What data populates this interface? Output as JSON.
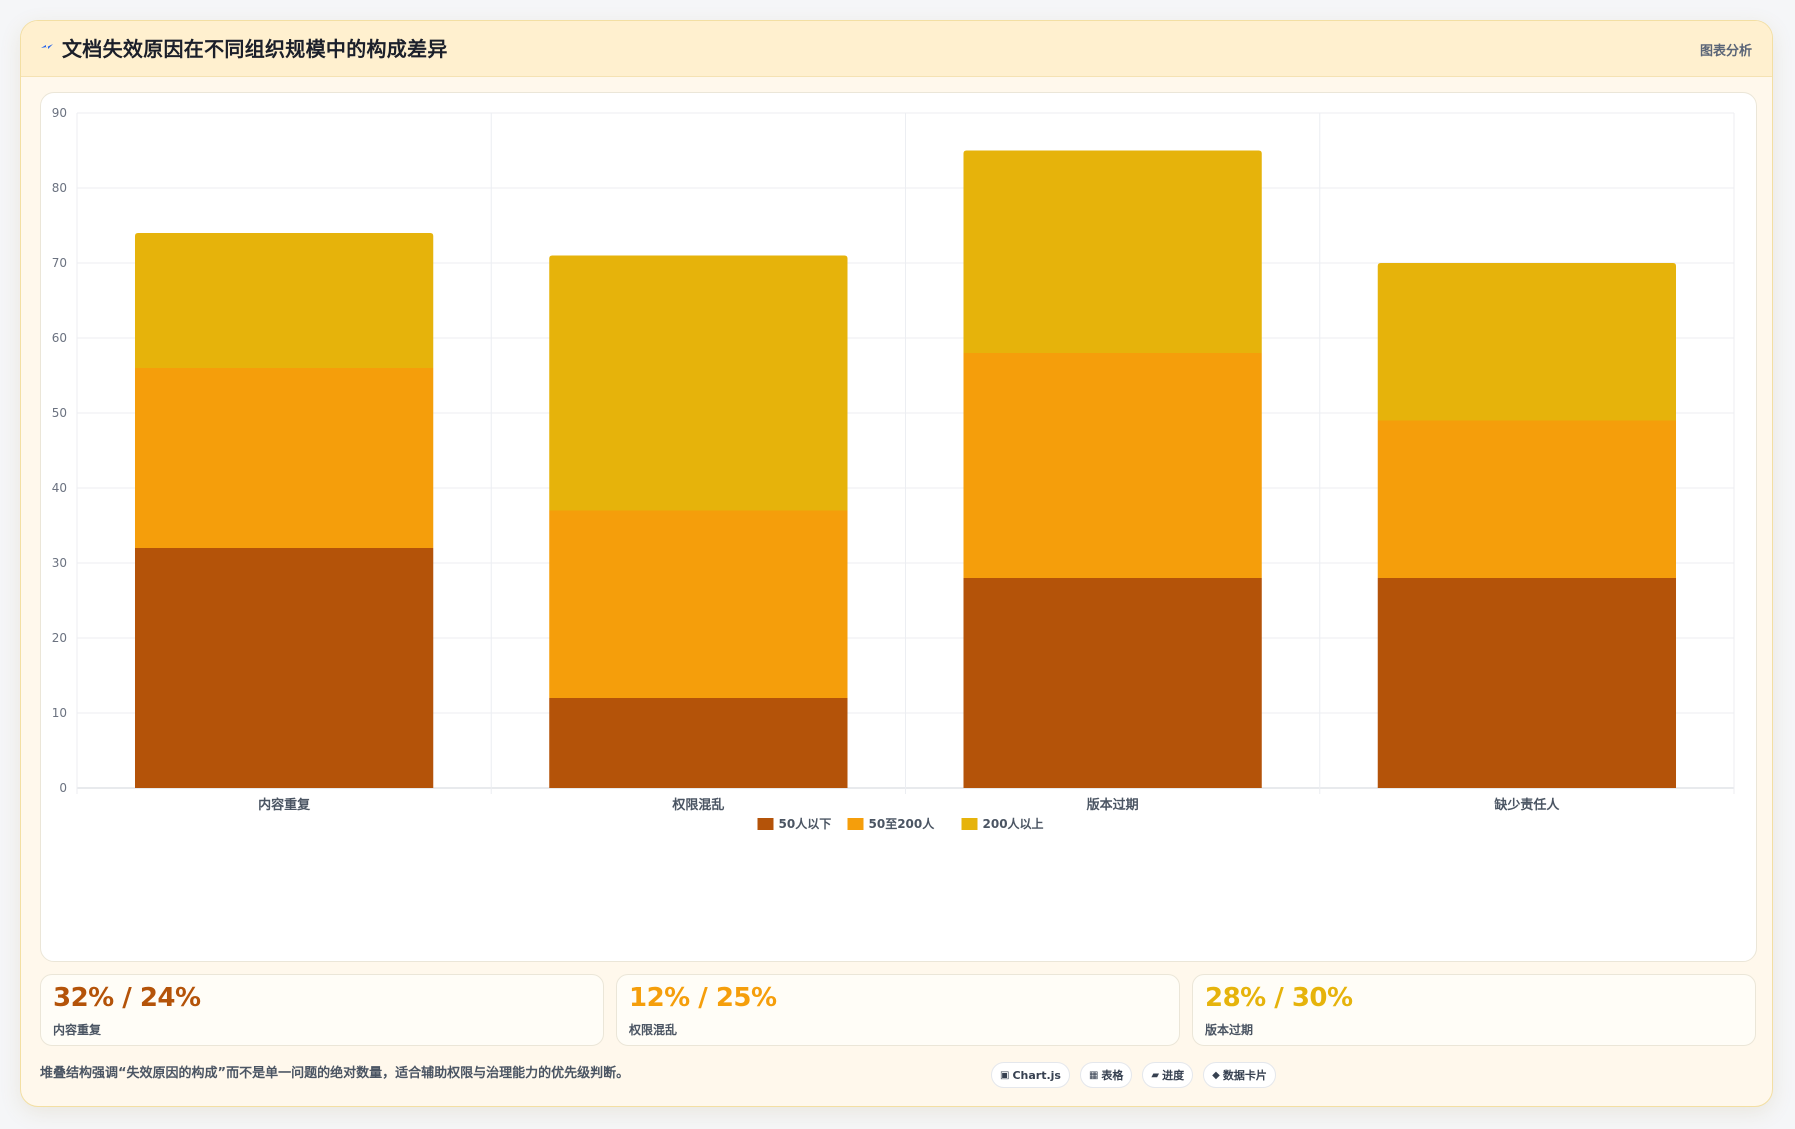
{
  "header": {
    "title": "文档失效原因在不同组织规模中的构成差异",
    "right_label": "图表分析",
    "icon": "lightning-icon"
  },
  "chart_data": {
    "type": "bar",
    "stacked": true,
    "title": "",
    "xlabel": "",
    "ylabel": "",
    "categories": [
      "内容重复",
      "权限混乱",
      "版本过期",
      "缺少责任人"
    ],
    "series": [
      {
        "name": "50人以下",
        "color": "#b45309",
        "values": [
          32,
          12,
          28,
          28
        ]
      },
      {
        "name": "50至200人",
        "color": "#f59e0b",
        "values": [
          24,
          25,
          30,
          21
        ]
      },
      {
        "name": "200人以上",
        "color": "#e6b30b",
        "values": [
          18,
          34,
          27,
          21
        ]
      }
    ],
    "ylim": [
      0,
      90
    ],
    "yticks": [
      0,
      10,
      20,
      30,
      40,
      50,
      60,
      70,
      80,
      90
    ],
    "grid": true,
    "legend_position": "bottom"
  },
  "stats": [
    {
      "value": "32% / 24%",
      "label": "内容重复",
      "color": "#b45309"
    },
    {
      "value": "12% / 25%",
      "label": "权限混乱",
      "color": "#f59e0b"
    },
    {
      "value": "28% / 30%",
      "label": "版本过期",
      "color": "#e6b30b"
    }
  ],
  "footnote": "堆叠结构强调“失效原因的构成”而不是单一问题的绝对数量，适合辅助权限与治理能力的优先级判断。",
  "chips": [
    {
      "icon": "▣",
      "label": "Chart.js"
    },
    {
      "icon": "▦",
      "label": "表格"
    },
    {
      "icon": "▰",
      "label": "进度"
    },
    {
      "icon": "◆",
      "label": "数据卡片"
    }
  ]
}
